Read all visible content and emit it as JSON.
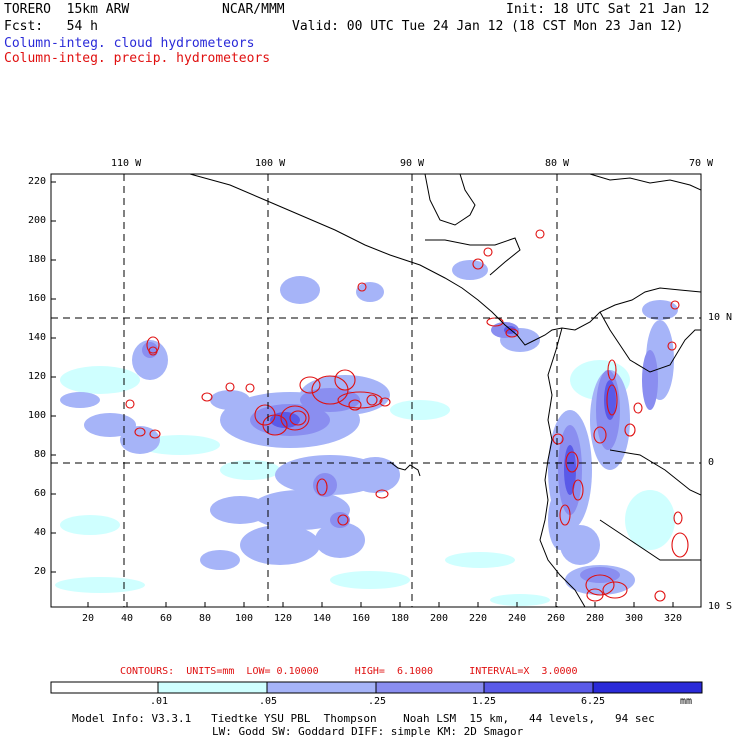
{
  "header": {
    "left_line1": "TORERO  15km ARW",
    "center_line1": "NCAR/MMM",
    "right_line1": "Init: 18 UTC Sat 21 Jan 12",
    "left_line2": "Fcst:   54 h",
    "right_line2": "Valid: 00 UTC Tue 24 Jan 12 (18 CST Mon 23 Jan 12)",
    "cloud_label": "Column-integ. cloud hydrometeors",
    "precip_label": "Column-integ. precip. hydrometeors"
  },
  "map": {
    "lon_labels": [
      "110 W",
      "100 W",
      "90 W",
      "80 W",
      "70 W"
    ],
    "lat_labels_right": [
      "10 N",
      "0",
      "10 S"
    ],
    "y_ticks": [
      "220",
      "200",
      "180",
      "160",
      "140",
      "120",
      "100",
      "80",
      "60",
      "40",
      "20"
    ],
    "x_ticks": [
      "20",
      "40",
      "60",
      "80",
      "100",
      "120",
      "140",
      "160",
      "180",
      "200",
      "220",
      "240",
      "260",
      "280",
      "300",
      "320"
    ],
    "colors": {
      "grid": "#000000",
      "coast": "#000000",
      "contour": "#e01010"
    }
  },
  "contours_line": "CONTOURS:  UNITS=mm  LOW= 0.10000      HIGH=  6.1000      INTERVAL=X  3.0000",
  "colorbar": {
    "labels": [
      ".01",
      ".05",
      ".25",
      "1.25",
      "6.25"
    ],
    "unit": "mm",
    "colors": [
      "#ffffff",
      "#cfffff",
      "#a6b4f8",
      "#8a8ef0",
      "#5a5ae8",
      "#2a2ad8"
    ]
  },
  "model_info": {
    "line1": "Model Info: V3.3.1   Tiedtke YSU PBL  Thompson    Noah LSM  15 km,   44 levels,   94 sec",
    "line2": "LW: Godd SW: Goddard DIFF: simple KM: 2D Smagor"
  }
}
